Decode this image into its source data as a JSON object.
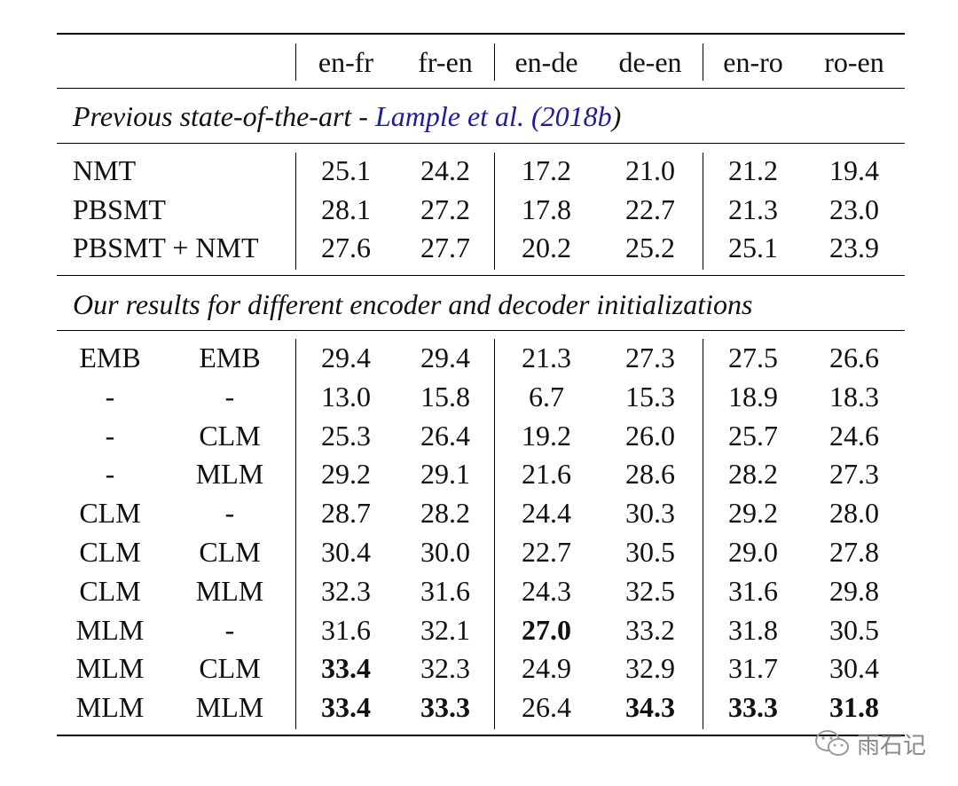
{
  "table": {
    "columns": [
      "en-fr",
      "fr-en",
      "en-de",
      "de-en",
      "en-ro",
      "ro-en"
    ],
    "section1": {
      "title_prefix": "Previous state-of-the-art - ",
      "citation_authors": "Lample et al.",
      "citation_year": "(2018b",
      "citation_close": ")"
    },
    "section1_rows": [
      {
        "label": "NMT",
        "values": [
          "25.1",
          "24.2",
          "17.2",
          "21.0",
          "21.2",
          "19.4"
        ]
      },
      {
        "label": "PBSMT",
        "values": [
          "28.1",
          "27.2",
          "17.8",
          "22.7",
          "21.3",
          "23.0"
        ]
      },
      {
        "label": "PBSMT + NMT",
        "values": [
          "27.6",
          "27.7",
          "20.2",
          "25.2",
          "25.1",
          "23.9"
        ]
      }
    ],
    "section2": {
      "title": "Our results for different encoder and decoder initializations"
    },
    "section2_rows": [
      {
        "enc": "EMB",
        "dec": "EMB",
        "values": [
          "29.4",
          "29.4",
          "21.3",
          "27.3",
          "27.5",
          "26.6"
        ],
        "bold": []
      },
      {
        "enc": "-",
        "dec": "-",
        "values": [
          "13.0",
          "15.8",
          "6.7",
          "15.3",
          "18.9",
          "18.3"
        ],
        "bold": []
      },
      {
        "enc": "-",
        "dec": "CLM",
        "values": [
          "25.3",
          "26.4",
          "19.2",
          "26.0",
          "25.7",
          "24.6"
        ],
        "bold": []
      },
      {
        "enc": "-",
        "dec": "MLM",
        "values": [
          "29.2",
          "29.1",
          "21.6",
          "28.6",
          "28.2",
          "27.3"
        ],
        "bold": []
      },
      {
        "enc": "CLM",
        "dec": "-",
        "values": [
          "28.7",
          "28.2",
          "24.4",
          "30.3",
          "29.2",
          "28.0"
        ],
        "bold": []
      },
      {
        "enc": "CLM",
        "dec": "CLM",
        "values": [
          "30.4",
          "30.0",
          "22.7",
          "30.5",
          "29.0",
          "27.8"
        ],
        "bold": []
      },
      {
        "enc": "CLM",
        "dec": "MLM",
        "values": [
          "32.3",
          "31.6",
          "24.3",
          "32.5",
          "31.6",
          "29.8"
        ],
        "bold": []
      },
      {
        "enc": "MLM",
        "dec": "-",
        "values": [
          "31.6",
          "32.1",
          "27.0",
          "33.2",
          "31.8",
          "30.5"
        ],
        "bold": [
          2
        ]
      },
      {
        "enc": "MLM",
        "dec": "CLM",
        "values": [
          "33.4",
          "32.3",
          "24.9",
          "32.9",
          "31.7",
          "30.4"
        ],
        "bold": [
          0
        ]
      },
      {
        "enc": "MLM",
        "dec": "MLM",
        "values": [
          "33.4",
          "33.3",
          "26.4",
          "34.3",
          "33.3",
          "31.8"
        ],
        "bold": [
          0,
          1,
          3,
          4,
          5
        ]
      }
    ]
  },
  "watermark": {
    "text": "雨石记",
    "icon": "wechat-icon"
  },
  "colors": {
    "citation": "#1e1e99",
    "rule": "#000000"
  }
}
